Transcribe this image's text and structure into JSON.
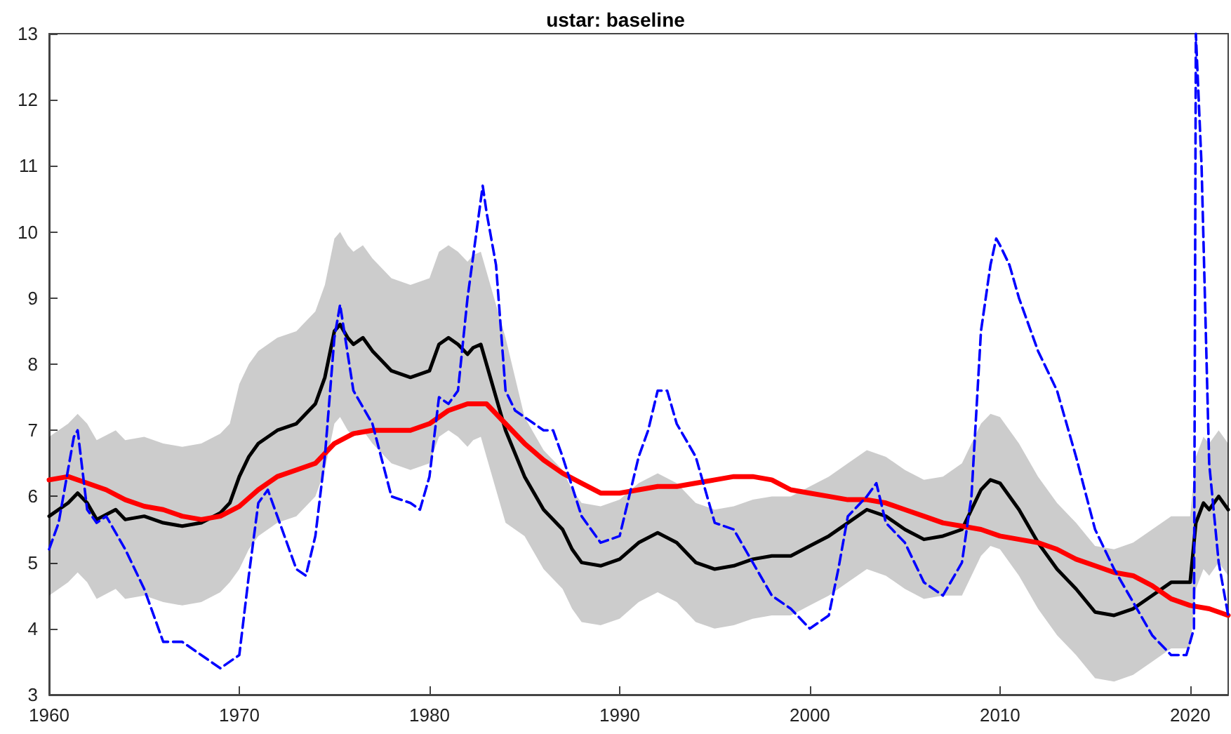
{
  "chart_data": {
    "type": "line",
    "title": "ustar: baseline",
    "xlim": [
      1960,
      2022
    ],
    "xticks": [
      1960,
      1970,
      1980,
      1990,
      2000,
      2010,
      2020
    ],
    "ylim": [
      3,
      13
    ],
    "yticks": [
      3,
      4,
      5,
      6,
      7,
      8,
      9,
      10,
      11,
      12,
      13
    ],
    "grid": false,
    "marker": "none",
    "series": [
      {
        "color": "#000000",
        "x": [
          1960,
          1961,
          1961.5,
          1962,
          1962.5,
          1963.5,
          1964,
          1965,
          1966,
          1967,
          1968,
          1969,
          1969.5,
          1970,
          1970.5,
          1971,
          1972,
          1973,
          1974,
          1974.5,
          1975,
          1975.3,
          1975.7,
          1976,
          1976.5,
          1977,
          1978,
          1979,
          1979.5,
          1980,
          1980.5,
          1981,
          1981.5,
          1982,
          1982.3,
          1982.7,
          1983,
          1983.5,
          1984,
          1985,
          1986,
          1987,
          1987.5,
          1988,
          1989,
          1990,
          1991,
          1992,
          1993,
          1994,
          1995,
          1996,
          1997,
          1998,
          1999,
          2000,
          2001,
          2002,
          2003,
          2004,
          2005,
          2006,
          2007,
          2008,
          2008.5,
          2009,
          2009.5,
          2010,
          2011,
          2012,
          2013,
          2014,
          2015,
          2016,
          2017,
          2018,
          2019,
          2020,
          2020.3,
          2020.7,
          2021,
          2021.5,
          2022
        ],
        "values": [
          5.7,
          5.9,
          6.05,
          5.9,
          5.65,
          5.8,
          5.65,
          5.7,
          5.6,
          5.55,
          5.6,
          5.75,
          5.9,
          6.3,
          6.6,
          6.8,
          7.0,
          7.1,
          7.4,
          7.8,
          8.5,
          8.6,
          8.4,
          8.3,
          8.4,
          8.2,
          7.9,
          7.8,
          7.85,
          7.9,
          8.3,
          8.4,
          8.3,
          8.15,
          8.25,
          8.3,
          8.0,
          7.5,
          7.0,
          6.3,
          5.8,
          5.5,
          5.2,
          5.0,
          4.95,
          5.05,
          5.3,
          5.45,
          5.3,
          5.0,
          4.9,
          4.95,
          5.05,
          5.1,
          5.1,
          5.25,
          5.4,
          5.6,
          5.8,
          5.7,
          5.5,
          5.35,
          5.4,
          5.5,
          5.8,
          6.1,
          6.25,
          6.2,
          5.8,
          5.3,
          4.9,
          4.6,
          4.25,
          4.2,
          4.3,
          4.5,
          4.7,
          4.7,
          5.6,
          5.9,
          5.8,
          6.0,
          5.8
        ],
        "lower": [
          4.5,
          4.7,
          4.85,
          4.7,
          4.45,
          4.6,
          4.45,
          4.5,
          4.4,
          4.35,
          4.4,
          4.55,
          4.7,
          4.9,
          5.2,
          5.4,
          5.6,
          5.7,
          6.0,
          6.4,
          7.1,
          7.2,
          7.0,
          6.9,
          7.0,
          6.8,
          6.5,
          6.4,
          6.45,
          6.5,
          6.9,
          7.0,
          6.9,
          6.75,
          6.85,
          6.9,
          6.6,
          6.1,
          5.6,
          5.4,
          4.9,
          4.6,
          4.3,
          4.1,
          4.05,
          4.15,
          4.4,
          4.55,
          4.4,
          4.1,
          4.0,
          4.05,
          4.15,
          4.2,
          4.2,
          4.35,
          4.5,
          4.7,
          4.9,
          4.8,
          4.6,
          4.45,
          4.5,
          4.5,
          4.8,
          5.1,
          5.25,
          5.2,
          4.8,
          4.3,
          3.9,
          3.6,
          3.25,
          3.2,
          3.3,
          3.5,
          3.7,
          3.7,
          4.6,
          4.9,
          4.8,
          5.0,
          4.8
        ],
        "upper": [
          6.9,
          7.1,
          7.25,
          7.1,
          6.85,
          7.0,
          6.85,
          6.9,
          6.8,
          6.75,
          6.8,
          6.95,
          7.1,
          7.7,
          8.0,
          8.2,
          8.4,
          8.5,
          8.8,
          9.2,
          9.9,
          10.0,
          9.8,
          9.7,
          9.8,
          9.6,
          9.3,
          9.2,
          9.25,
          9.3,
          9.7,
          9.8,
          9.7,
          9.55,
          9.65,
          9.7,
          9.4,
          8.9,
          8.4,
          7.2,
          6.7,
          6.4,
          6.1,
          5.9,
          5.85,
          5.95,
          6.2,
          6.35,
          6.2,
          5.9,
          5.8,
          5.85,
          5.95,
          6.0,
          6.0,
          6.15,
          6.3,
          6.5,
          6.7,
          6.6,
          6.4,
          6.25,
          6.3,
          6.5,
          6.8,
          7.1,
          7.25,
          7.2,
          6.8,
          6.3,
          5.9,
          5.6,
          5.25,
          5.2,
          5.3,
          5.5,
          5.7,
          5.7,
          6.6,
          6.9,
          6.8,
          7.0,
          6.8
        ]
      },
      {
        "color": "#ff0000",
        "x": [
          1960,
          1961,
          1962,
          1963,
          1964,
          1965,
          1966,
          1967,
          1968,
          1969,
          1970,
          1971,
          1972,
          1973,
          1974,
          1975,
          1976,
          1977,
          1978,
          1979,
          1980,
          1981,
          1982,
          1983,
          1984,
          1985,
          1986,
          1987,
          1988,
          1989,
          1990,
          1991,
          1992,
          1993,
          1994,
          1995,
          1996,
          1997,
          1998,
          1999,
          2000,
          2001,
          2002,
          2003,
          2004,
          2005,
          2006,
          2007,
          2008,
          2009,
          2010,
          2011,
          2012,
          2013,
          2014,
          2015,
          2016,
          2017,
          2018,
          2019,
          2020,
          2021,
          2022
        ],
        "values": [
          6.25,
          6.3,
          6.2,
          6.1,
          5.95,
          5.85,
          5.8,
          5.7,
          5.65,
          5.7,
          5.85,
          6.1,
          6.3,
          6.4,
          6.5,
          6.8,
          6.95,
          7.0,
          7.0,
          7.0,
          7.1,
          7.3,
          7.4,
          7.4,
          7.1,
          6.8,
          6.55,
          6.35,
          6.2,
          6.05,
          6.05,
          6.1,
          6.15,
          6.15,
          6.2,
          6.25,
          6.3,
          6.3,
          6.25,
          6.1,
          6.05,
          6.0,
          5.95,
          5.95,
          5.9,
          5.8,
          5.7,
          5.6,
          5.55,
          5.5,
          5.4,
          5.35,
          5.3,
          5.2,
          5.05,
          4.95,
          4.85,
          4.8,
          4.65,
          4.45,
          4.35,
          4.3,
          4.2
        ]
      },
      {
        "color": "#0000ff",
        "line_style": "dashed",
        "x": [
          1960,
          1960.5,
          1961.3,
          1961.5,
          1962,
          1962.5,
          1963,
          1964,
          1965,
          1966,
          1967,
          1968,
          1969,
          1970,
          1970.5,
          1971,
          1971.5,
          1972,
          1973,
          1973.5,
          1974,
          1974.5,
          1975,
          1975.3,
          1976,
          1977,
          1978,
          1979,
          1979.5,
          1980,
          1980.5,
          1981,
          1981.5,
          1982,
          1982.8,
          1983,
          1983.5,
          1984,
          1984.5,
          1985,
          1986,
          1986.5,
          1987,
          1988,
          1989,
          1990,
          1991,
          1991.5,
          1992,
          1992.5,
          1993,
          1994,
          1995,
          1996,
          1997,
          1998,
          1999,
          2000,
          2001,
          2001.5,
          2002,
          2003,
          2003.5,
          2004,
          2005,
          2006,
          2007,
          2008,
          2008.5,
          2009,
          2009.5,
          2009.8,
          2010,
          2010.5,
          2011,
          2012,
          2013,
          2014,
          2015,
          2016,
          2017,
          2018,
          2019,
          2019.8,
          2020.2,
          2020.3,
          2020.6,
          2021,
          2021.5,
          2022
        ],
        "values": [
          5.2,
          5.6,
          6.9,
          7.0,
          5.8,
          5.6,
          5.7,
          5.2,
          4.6,
          3.8,
          3.8,
          3.6,
          3.4,
          3.6,
          4.8,
          5.9,
          6.1,
          5.7,
          4.9,
          4.8,
          5.4,
          6.6,
          8.4,
          8.9,
          7.6,
          7.1,
          6.0,
          5.9,
          5.8,
          6.3,
          7.5,
          7.4,
          7.6,
          9.0,
          10.7,
          10.3,
          9.5,
          7.6,
          7.3,
          7.2,
          7.0,
          7.0,
          6.6,
          5.7,
          5.3,
          5.4,
          6.6,
          7.0,
          7.6,
          7.6,
          7.1,
          6.6,
          5.6,
          5.5,
          5.0,
          4.5,
          4.3,
          4.0,
          4.2,
          4.9,
          5.7,
          6.0,
          6.2,
          5.6,
          5.3,
          4.7,
          4.5,
          5.0,
          6.0,
          8.5,
          9.5,
          9.9,
          9.8,
          9.5,
          9.0,
          8.2,
          7.6,
          6.6,
          5.5,
          4.9,
          4.4,
          3.9,
          3.6,
          3.6,
          4.0,
          13,
          11.0,
          6.5,
          5.0,
          4.2
        ]
      }
    ]
  }
}
